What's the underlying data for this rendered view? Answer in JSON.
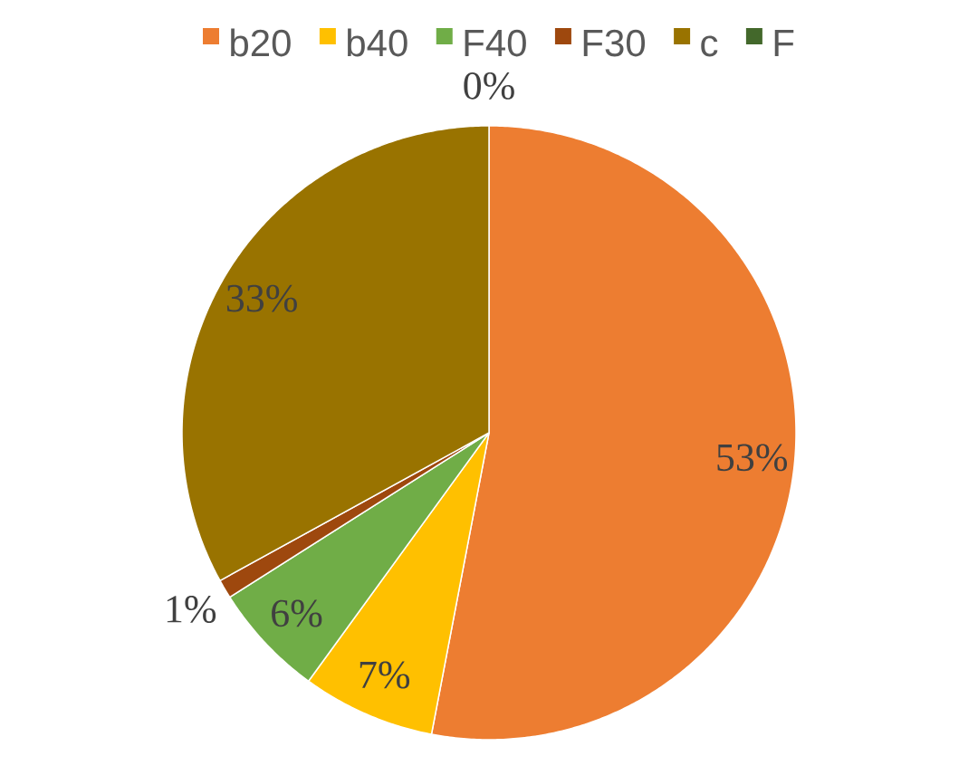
{
  "chart_data": {
    "type": "pie",
    "categories": [
      "b20",
      "b40",
      "F40",
      "F30",
      "c",
      "F"
    ],
    "values": [
      53,
      7,
      6,
      1,
      33,
      0
    ],
    "colors": [
      "#ed7d31",
      "#ffc000",
      "#70ad47",
      "#9e480e",
      "#997300",
      "#43682b"
    ],
    "value_labels": [
      "53%",
      "7%",
      "6%",
      "1%",
      "33%",
      "0%"
    ],
    "legend": "top"
  }
}
